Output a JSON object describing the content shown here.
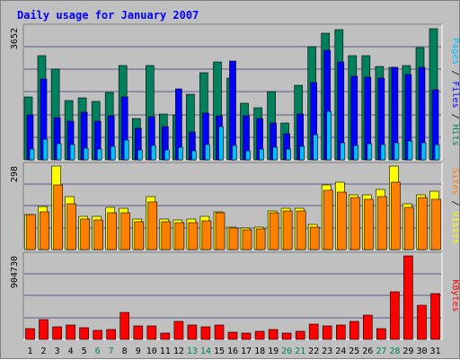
{
  "title": "Daily usage for January 2007",
  "colors": {
    "background": "#c0c0c0",
    "plot_background": "#c0c0c0",
    "title": "#0000ff",
    "grid": "#5a5a8a",
    "hits": "#00805c",
    "files": "#0000ff",
    "pages": "#00c0ff",
    "visits": "#ffff00",
    "sites": "#ff8000",
    "kbytes": "#ff0000",
    "weekday_label": "#000000",
    "weekend_label": "#00805c"
  },
  "chart_data": [
    {
      "type": "bar",
      "name": "hits-files-pages",
      "categories": [
        "1",
        "2",
        "3",
        "4",
        "5",
        "6",
        "7",
        "8",
        "9",
        "10",
        "11",
        "12",
        "13",
        "14",
        "15",
        "16",
        "17",
        "18",
        "19",
        "20",
        "21",
        "22",
        "23",
        "24",
        "25",
        "26",
        "27",
        "28",
        "29",
        "30",
        "31"
      ],
      "weekend_days": [
        "6",
        "7",
        "13",
        "14",
        "20",
        "21",
        "27",
        "28"
      ],
      "ymax_label": "3652",
      "ylim": [
        0,
        3652
      ],
      "ylabel_parts": [
        "Pages",
        "Files",
        "Hits"
      ],
      "series": [
        {
          "name": "Hits",
          "values": [
            1730,
            2880,
            2520,
            1630,
            1720,
            1620,
            1860,
            2600,
            1140,
            2620,
            1270,
            1240,
            1820,
            2400,
            2720,
            2260,
            1570,
            1450,
            1900,
            1010,
            2070,
            3130,
            3500,
            3600,
            2880,
            2880,
            2580,
            2550,
            2600,
            3110,
            3630
          ]
        },
        {
          "name": "Files",
          "values": [
            1250,
            2230,
            1180,
            1070,
            1310,
            1060,
            1210,
            1730,
            860,
            1200,
            920,
            1960,
            770,
            1280,
            1210,
            2730,
            1220,
            1150,
            1020,
            720,
            1270,
            2140,
            3040,
            2720,
            2320,
            2280,
            2270,
            2550,
            2360,
            2550,
            1930
          ]
        },
        {
          "name": "Pages",
          "values": [
            300,
            560,
            450,
            410,
            330,
            310,
            380,
            550,
            280,
            400,
            280,
            360,
            260,
            410,
            930,
            390,
            250,
            300,
            350,
            310,
            380,
            700,
            1340,
            470,
            400,
            450,
            430,
            460,
            510,
            470,
            410
          ]
        }
      ]
    },
    {
      "type": "bar",
      "name": "visits-sites",
      "categories": [
        "1",
        "2",
        "3",
        "4",
        "5",
        "6",
        "7",
        "8",
        "9",
        "10",
        "11",
        "12",
        "13",
        "14",
        "15",
        "16",
        "17",
        "18",
        "19",
        "20",
        "21",
        "22",
        "23",
        "24",
        "25",
        "26",
        "27",
        "28",
        "29",
        "30",
        "31"
      ],
      "ymax_label": "298",
      "ylim": [
        0,
        298
      ],
      "ylabel_parts": [
        "Sites",
        "Visits"
      ],
      "series": [
        {
          "name": "Visits",
          "values": [
            125,
            155,
            298,
            190,
            120,
            118,
            152,
            148,
            108,
            190,
            108,
            107,
            110,
            120,
            135,
            80,
            78,
            80,
            137,
            148,
            148,
            90,
            230,
            240,
            195,
            196,
            215,
            298,
            165,
            195,
            208
          ]
        },
        {
          "name": "Sites",
          "values": [
            125,
            133,
            232,
            165,
            110,
            107,
            132,
            132,
            100,
            170,
            98,
            97,
            97,
            104,
            130,
            78,
            72,
            75,
            132,
            139,
            139,
            80,
            212,
            205,
            185,
            180,
            190,
            240,
            150,
            185,
            178
          ]
        }
      ]
    },
    {
      "type": "bar",
      "name": "kbytes",
      "categories": [
        "1",
        "2",
        "3",
        "4",
        "5",
        "6",
        "7",
        "8",
        "9",
        "10",
        "11",
        "12",
        "13",
        "14",
        "15",
        "16",
        "17",
        "18",
        "19",
        "20",
        "21",
        "22",
        "23",
        "24",
        "25",
        "26",
        "27",
        "28",
        "29",
        "30",
        "31"
      ],
      "ymax_label": "904730",
      "ylim": [
        0,
        904730
      ],
      "ylabel_parts": [
        "KBytes"
      ],
      "series": [
        {
          "name": "KBytes",
          "values": [
            115000,
            210000,
            140000,
            160000,
            130000,
            95000,
            105000,
            290000,
            145000,
            150000,
            65000,
            195000,
            155000,
            140000,
            160000,
            80000,
            65000,
            85000,
            105000,
            70000,
            85000,
            170000,
            150000,
            155000,
            190000,
            260000,
            120000,
            520000,
            904730,
            370000,
            500000
          ]
        }
      ]
    }
  ]
}
